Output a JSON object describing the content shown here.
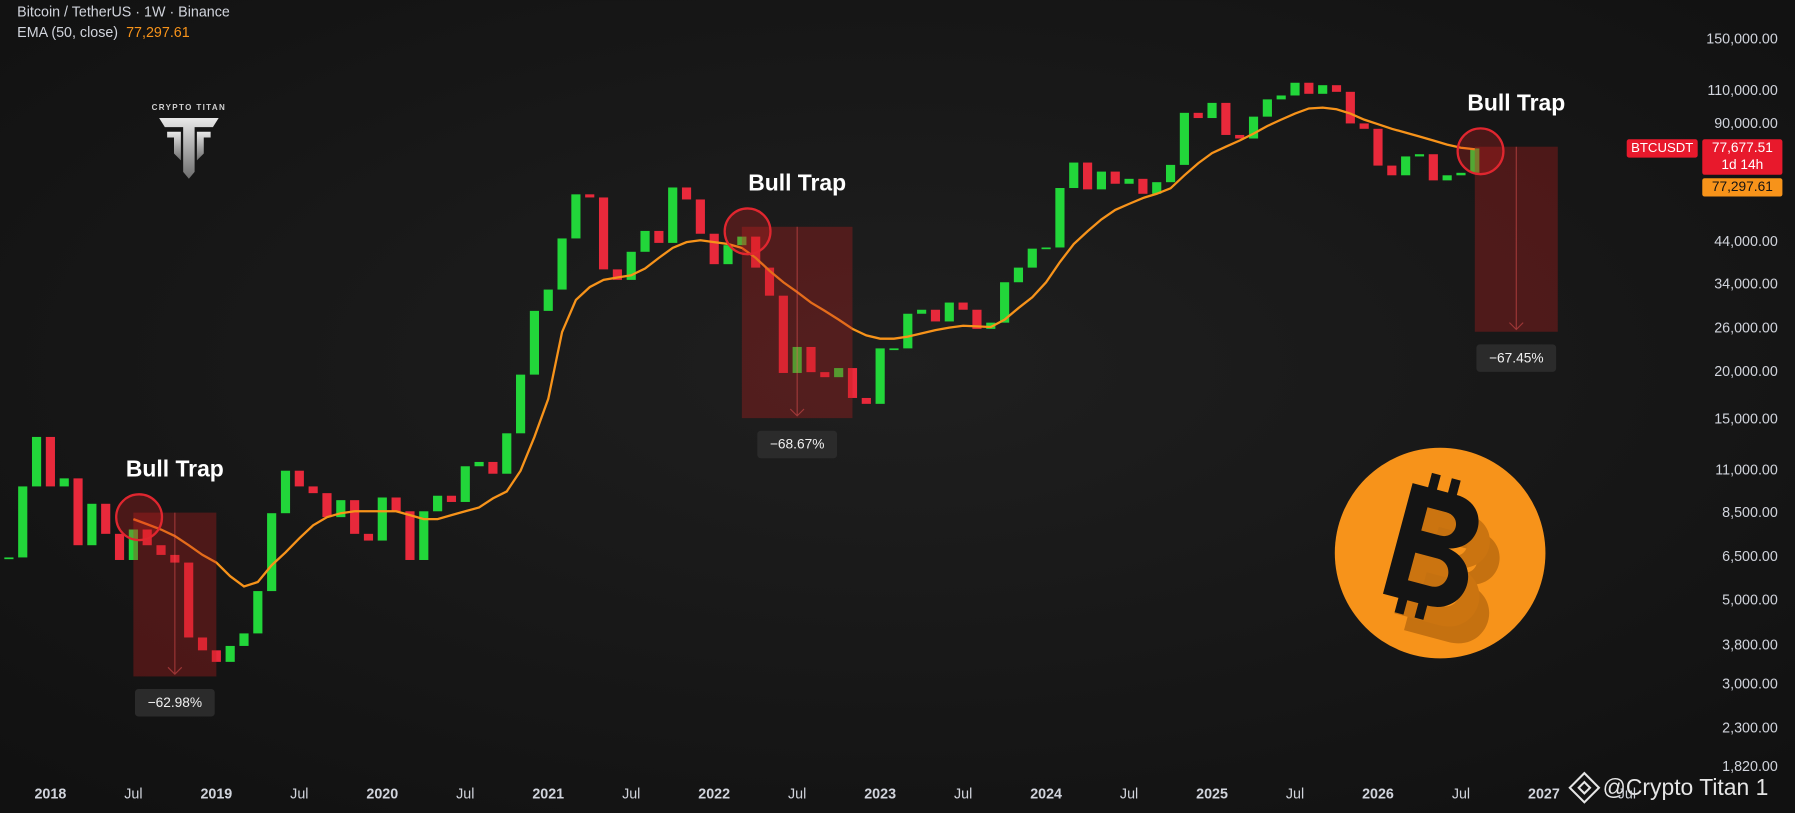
{
  "chart_data": {
    "type": "candlestick",
    "title": "Bitcoin / TetherUS · 1W · Binance",
    "logo_text": "CRYPTO TITAN",
    "watermark": "@Crypto Titan 1",
    "countdown": "1d 14h",
    "log_scale": true,
    "grid": false,
    "x": [
      "2017-10",
      "2017-11",
      "2017-12",
      "2018-01",
      "2018-02",
      "2018-03",
      "2018-04",
      "2018-05",
      "2018-06",
      "2018-07",
      "2018-08",
      "2018-09",
      "2018-10",
      "2018-11",
      "2018-12",
      "2019-01",
      "2019-02",
      "2019-03",
      "2019-04",
      "2019-05",
      "2019-06",
      "2019-07",
      "2019-08",
      "2019-09",
      "2019-10",
      "2019-11",
      "2019-12",
      "2020-01",
      "2020-02",
      "2020-03",
      "2020-04",
      "2020-05",
      "2020-06",
      "2020-07",
      "2020-08",
      "2020-09",
      "2020-10",
      "2020-11",
      "2020-12",
      "2021-01",
      "2021-02",
      "2021-03",
      "2021-04",
      "2021-05",
      "2021-06",
      "2021-07",
      "2021-08",
      "2021-09",
      "2021-10",
      "2021-11",
      "2021-12",
      "2022-01",
      "2022-02",
      "2022-03",
      "2022-04",
      "2022-05",
      "2022-06",
      "2022-07",
      "2022-08",
      "2022-09",
      "2022-10",
      "2022-11",
      "2022-12",
      "2023-01",
      "2023-02",
      "2023-03",
      "2023-04",
      "2023-05",
      "2023-06",
      "2023-07",
      "2023-08",
      "2023-09",
      "2023-10",
      "2023-11",
      "2023-12",
      "2024-01",
      "2024-02",
      "2024-03",
      "2024-04",
      "2024-05",
      "2024-06",
      "2024-07",
      "2024-08",
      "2024-09",
      "2024-10",
      "2024-11",
      "2024-12",
      "2025-01",
      "2025-02",
      "2025-03",
      "2025-04",
      "2025-05",
      "2025-06",
      "2025-07",
      "2025-08",
      "2025-09",
      "2025-10",
      "2025-11",
      "2025-12",
      "2026-01",
      "2026-02",
      "2026-03",
      "2026-04",
      "2026-05",
      "2026-06",
      "2026-07",
      "2026-08"
    ],
    "series": [
      {
        "name": "BTCUSDT",
        "up_color": "#22d63a",
        "down_color": "#e8293b",
        "values": [
          6500,
          10000,
          13500,
          10000,
          10500,
          7000,
          9000,
          7500,
          6400,
          7700,
          7000,
          6600,
          6300,
          4000,
          3700,
          3450,
          3800,
          4100,
          5300,
          8500,
          11000,
          10000,
          9600,
          8300,
          9200,
          7500,
          7200,
          9350,
          8600,
          6400,
          8600,
          9450,
          9100,
          11300,
          11600,
          10800,
          13800,
          19700,
          29000,
          33000,
          45000,
          58800,
          57700,
          37300,
          35000,
          41500,
          47100,
          43800,
          61300,
          57000,
          46300,
          38500,
          43200,
          45500,
          37700,
          31800,
          19900,
          23300,
          20000,
          19400,
          20500,
          17100,
          16500,
          23100,
          23100,
          28500,
          29200,
          27200,
          30500,
          29200,
          26000,
          27000,
          34500,
          37700,
          42300,
          42600,
          61100,
          71300,
          60600,
          67500,
          62700,
          64600,
          59000,
          63300,
          70300,
          96400,
          93400,
          102400,
          84300,
          82500,
          94200,
          104600,
          107100,
          115700,
          108200,
          114000,
          109500,
          90400,
          87500,
          70000,
          66000,
          74000,
          75000,
          64000,
          66000,
          67000,
          77677.51
        ]
      },
      {
        "name": "EMA (50, close)",
        "color": "#f7931a",
        "values": [
          null,
          null,
          null,
          null,
          null,
          null,
          null,
          null,
          null,
          8200,
          7950,
          7700,
          7400,
          7000,
          6600,
          6300,
          5800,
          5450,
          5600,
          6200,
          6700,
          7300,
          7900,
          8300,
          8500,
          8600,
          8600,
          8600,
          8600,
          8400,
          8200,
          8200,
          8400,
          8600,
          8800,
          9300,
          9700,
          11000,
          13500,
          17000,
          25500,
          31000,
          33500,
          35000,
          35500,
          36000,
          37500,
          40000,
          42500,
          44000,
          44500,
          44000,
          43500,
          42500,
          40000,
          37000,
          34500,
          32500,
          30500,
          29000,
          27500,
          26000,
          25000,
          24500,
          24500,
          24800,
          25300,
          25800,
          26200,
          26500,
          26400,
          26300,
          27500,
          29500,
          31500,
          34500,
          39000,
          43500,
          47000,
          50500,
          53500,
          55500,
          57500,
          59000,
          61000,
          66000,
          71000,
          75500,
          78500,
          81500,
          85000,
          89000,
          92500,
          96000,
          99000,
          99500,
          98500,
          96000,
          92500,
          90000,
          87500,
          85500,
          83500,
          81500,
          79500,
          78000,
          77297.61
        ]
      }
    ],
    "last_close": {
      "value": 77677.51,
      "label": "77,677.51"
    },
    "ema_last": {
      "value": 77297.61,
      "label": "77,297.61"
    },
    "xlim": [
      "2017-09",
      "2027-11"
    ],
    "xticks": [
      {
        "value": "2018-01",
        "label": "2018"
      },
      {
        "value": "2018-07",
        "label": "Jul"
      },
      {
        "value": "2019-01",
        "label": "2019"
      },
      {
        "value": "2019-07",
        "label": "Jul"
      },
      {
        "value": "2020-01",
        "label": "2020"
      },
      {
        "value": "2020-07",
        "label": "Jul"
      },
      {
        "value": "2021-01",
        "label": "2021"
      },
      {
        "value": "2021-07",
        "label": "Jul"
      },
      {
        "value": "2022-01",
        "label": "2022"
      },
      {
        "value": "2022-07",
        "label": "Jul"
      },
      {
        "value": "2023-01",
        "label": "2023"
      },
      {
        "value": "2023-07",
        "label": "Jul"
      },
      {
        "value": "2024-01",
        "label": "2024"
      },
      {
        "value": "2024-07",
        "label": "Jul"
      },
      {
        "value": "2025-01",
        "label": "2025"
      },
      {
        "value": "2025-07",
        "label": "Jul"
      },
      {
        "value": "2026-01",
        "label": "2026"
      },
      {
        "value": "2026-07",
        "label": "Jul"
      },
      {
        "value": "2027-01",
        "label": "2027"
      },
      {
        "value": "2027-07",
        "label": "Jul"
      }
    ],
    "ylim": [
      1700,
      191000
    ],
    "yticks": [
      {
        "value": 150000,
        "label": "150,000.00"
      },
      {
        "value": 110000,
        "label": "110,000.00"
      },
      {
        "value": 90000,
        "label": "90,000.00"
      },
      {
        "value": 44000,
        "label": "44,000.00"
      },
      {
        "value": 34000,
        "label": "34,000.00"
      },
      {
        "value": 26000,
        "label": "26,000.00"
      },
      {
        "value": 20000,
        "label": "20,000.00"
      },
      {
        "value": 15000,
        "label": "15,000.00"
      },
      {
        "value": 11000,
        "label": "11,000.00"
      },
      {
        "value": 8500,
        "label": "8,500.00"
      },
      {
        "value": 6500,
        "label": "6,500.00"
      },
      {
        "value": 5000,
        "label": "5,000.00"
      },
      {
        "value": 3800,
        "label": "3,800.00"
      },
      {
        "value": 3000,
        "label": "3,000.00"
      },
      {
        "value": 2300,
        "label": "2,300.00"
      },
      {
        "value": 1820,
        "label": "1,820.00"
      }
    ],
    "annotations": [
      {
        "text": "Bull Trap",
        "x_from": "2018-07",
        "x_to": "2019-01",
        "top": 8530,
        "bottom": 3158,
        "change_label": "−62.98%"
      },
      {
        "text": "Bull Trap",
        "x_from": "2022-03",
        "x_to": "2022-11",
        "top": 48300,
        "bottom": 15130,
        "change_label": "−68.67%"
      },
      {
        "text": "Bull Trap",
        "x_from": "2026-08",
        "x_to": "2027-02",
        "top": 78500,
        "bottom": 25550,
        "change_label": "−67.45%"
      }
    ]
  }
}
